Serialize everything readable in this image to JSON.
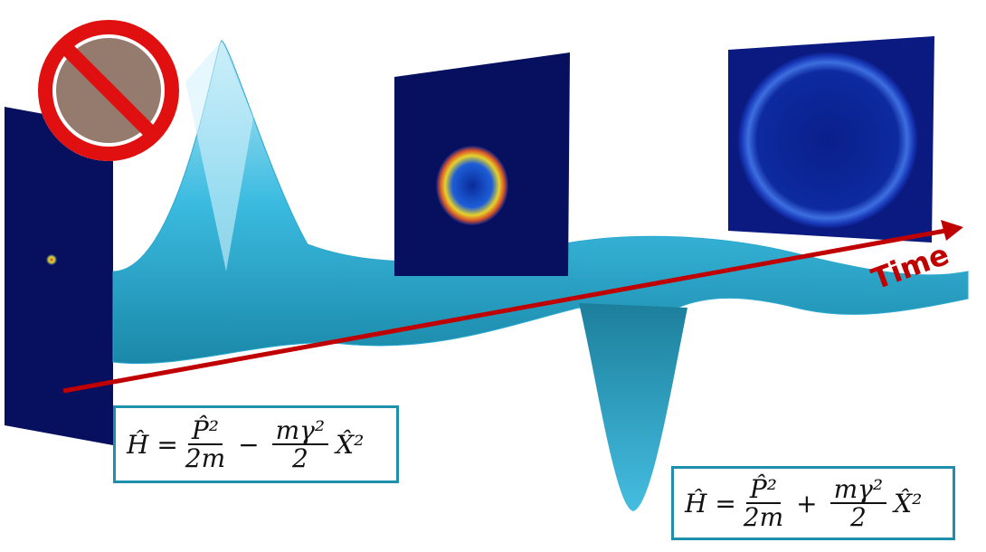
{
  "arrow_label": "Time",
  "equations": [
    {
      "lhs": "Ĥ =",
      "p_numerator": "P̂²",
      "p_denominator": "2m",
      "operator": "−",
      "m_numerator": "mγ²",
      "m_denominator": "2",
      "term": "X̂²"
    },
    {
      "lhs": "Ĥ =",
      "p_numerator": "P̂²",
      "p_denominator": "2m",
      "operator": "+",
      "m_numerator": "mγ²",
      "m_denominator": "2",
      "term": "X̂²"
    }
  ]
}
